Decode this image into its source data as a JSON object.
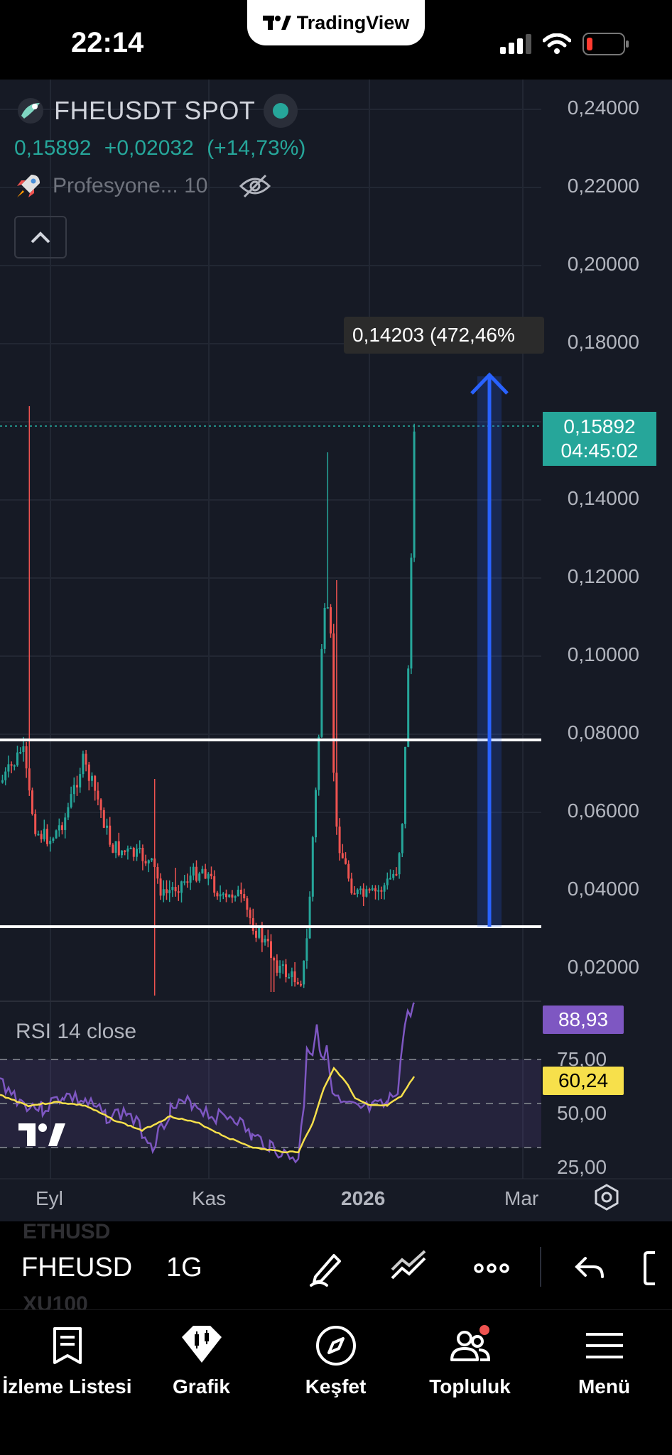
{
  "status_bar": {
    "time": "22:14",
    "notch_title": "TradingView"
  },
  "header": {
    "symbol": "FHEUSDT SPOT",
    "last_price": "0,15892",
    "change": "+0,02032",
    "change_pct": "(+14,73%)",
    "indicator_label": "Profesyone... 10"
  },
  "chart": {
    "measure_label": "0,14203 (472,46%",
    "price_badge": {
      "price": "0,15892",
      "countdown": "04:45:02"
    },
    "y_axis": [
      "0,24000",
      "0,22000",
      "0,20000",
      "0,18000",
      "0,14000",
      "0,12000",
      "0,10000",
      "0,08000",
      "0,06000",
      "0,04000",
      "0,02000"
    ],
    "x_axis": [
      "Eyl",
      "Kas",
      "2026",
      "Mar"
    ],
    "colors": {
      "up": "#26a69a",
      "down": "#ef5350",
      "measure": "#2962ff",
      "rsi": "#7e57c2",
      "rsi_ma": "#f7e04b"
    }
  },
  "rsi": {
    "title": "RSI 14 close",
    "levels": [
      "75,00",
      "50,00",
      "25,00"
    ],
    "rsi_value": "88,93",
    "ma_value": "60,24"
  },
  "toolbar": {
    "symbol": "FHEUSD",
    "timeframe": "1G",
    "ghost_above": "ETHUSD",
    "ghost_below": "XU100"
  },
  "nav": [
    {
      "label": "İzleme Listesi",
      "icon": "watchlist-icon"
    },
    {
      "label": "Grafik",
      "icon": "chart-icon"
    },
    {
      "label": "Keşfet",
      "icon": "compass-icon"
    },
    {
      "label": "Topluluk",
      "icon": "community-icon"
    },
    {
      "label": "Menü",
      "icon": "menu-icon"
    }
  ]
}
